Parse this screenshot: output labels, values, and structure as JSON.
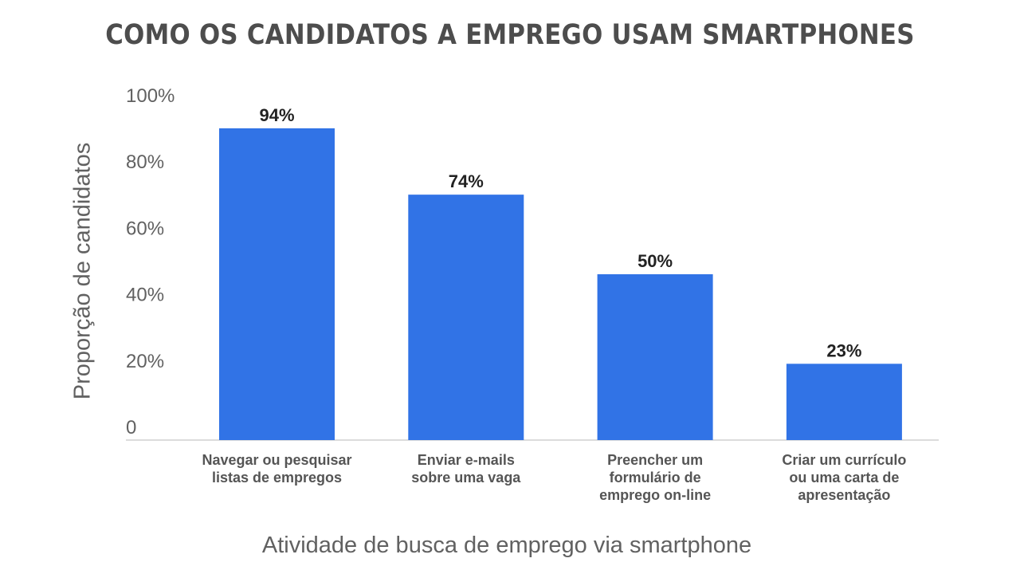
{
  "chart_data": {
    "type": "bar",
    "title": "COMO OS CANDIDATOS A EMPREGO USAM SMARTPHONES",
    "xlabel": "Atividade de busca de emprego via smartphone",
    "ylabel": "Proporção de candidatos",
    "categories": [
      "Navegar ou pesquisar\nlistas de empregos",
      "Enviar e-mails\nsobre uma vaga",
      "Preencher um\nformulário de\nemprego on-line",
      "Criar um currículo\nou uma carta de\napresentação"
    ],
    "values": [
      94,
      74,
      50,
      23
    ],
    "data_labels": [
      "94%",
      "74%",
      "50%",
      "23%"
    ],
    "yticks": [
      0,
      20,
      40,
      60,
      80,
      100
    ],
    "ytick_labels": [
      "0",
      "20%",
      "40%",
      "60%",
      "80%",
      "100%"
    ],
    "ylim": [
      0,
      100
    ],
    "grid": false,
    "bar_color": "#3173e6"
  }
}
